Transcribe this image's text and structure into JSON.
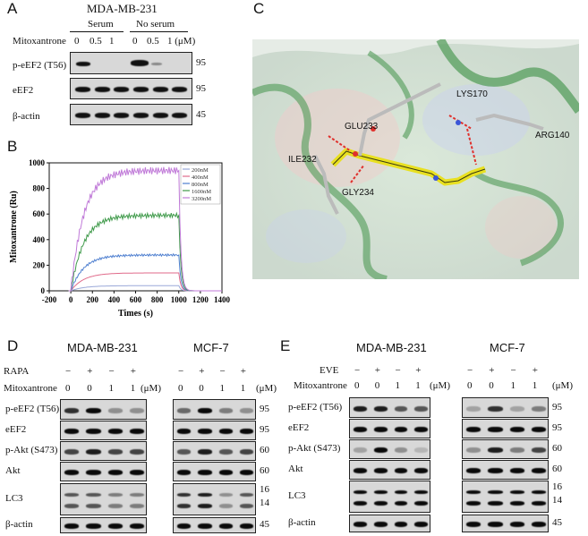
{
  "panelA": {
    "letter": "A",
    "cell_line": "MDA-MB-231",
    "group1": "Serum",
    "group2": "No  serum",
    "row_label": "Mitoxantrone",
    "doses": [
      "0",
      "0.5",
      "1",
      "0",
      "0.5",
      "1 (μM)"
    ],
    "blots": [
      {
        "label": "p-eEF2 (T56)",
        "mw": "95"
      },
      {
        "label": "eEF2",
        "mw": "95"
      },
      {
        "label": "β-actin",
        "mw": "45"
      }
    ]
  },
  "panelB": {
    "letter": "B",
    "chart_data": {
      "type": "line",
      "xlabel": "Times (s)",
      "ylabel": "Mitoxantrone (Ru)",
      "xlim": [
        -200,
        1400
      ],
      "ylim": [
        0,
        1000
      ],
      "xticks": [
        "-200",
        "0",
        "200",
        "400",
        "600",
        "800",
        "1000",
        "1200",
        "1400"
      ],
      "yticks": [
        "0",
        "100",
        "200",
        "300",
        "400",
        "500",
        "600",
        "700",
        "800",
        "900",
        "1000"
      ],
      "legend_position": "top-right",
      "series": [
        {
          "name": "200nM",
          "color": "#9aa8d8",
          "plateau": 40
        },
        {
          "name": "400nM",
          "color": "#e06a8a",
          "plateau": 140
        },
        {
          "name": "800nM",
          "color": "#4e7fd0",
          "plateau": 280
        },
        {
          "name": "1600nM",
          "color": "#3f9a4a",
          "plateau": 590
        },
        {
          "name": "3200nM",
          "color": "#c07ad8",
          "plateau": 940
        }
      ]
    }
  },
  "panelC": {
    "letter": "C",
    "residues": [
      "LYS170",
      "GLU233",
      "ARG140",
      "ILE232",
      "GLY234"
    ]
  },
  "panelD": {
    "letter": "D",
    "cell1": "MDA-MB-231",
    "cell2": "MCF-7",
    "treat_label": "RAPA",
    "treat_signs": [
      "−",
      "+",
      "−",
      "+"
    ],
    "row_label": "Mitoxantrone",
    "doses": [
      "0",
      "0",
      "1",
      "1"
    ],
    "unit": "(μM)",
    "blots": [
      {
        "label": "p-eEF2 (T56)",
        "mw": "95"
      },
      {
        "label": "eEF2",
        "mw": "95"
      },
      {
        "label": "p-Akt (S473)",
        "mw": "60"
      },
      {
        "label": "Akt",
        "mw": "60"
      },
      {
        "label": "LC3",
        "mw": "16",
        "mw2": "14"
      },
      {
        "label": "β-actin",
        "mw": "45"
      }
    ]
  },
  "panelE": {
    "letter": "E",
    "cell1": "MDA-MB-231",
    "cell2": "MCF-7",
    "treat_label": "EVE",
    "treat_signs": [
      "−",
      "+",
      "−",
      "+"
    ],
    "row_label": "Mitoxantrone",
    "doses": [
      "0",
      "0",
      "1",
      "1"
    ],
    "unit": "(μM)",
    "blots": [
      {
        "label": "p-eEF2 (T56)",
        "mw": "95"
      },
      {
        "label": "eEF2",
        "mw": "95"
      },
      {
        "label": "p-Akt (S473)",
        "mw": "60"
      },
      {
        "label": "Akt",
        "mw": "60"
      },
      {
        "label": "LC3",
        "mw": "16",
        "mw2": "14"
      },
      {
        "label": "β-actin",
        "mw": "45"
      }
    ]
  }
}
